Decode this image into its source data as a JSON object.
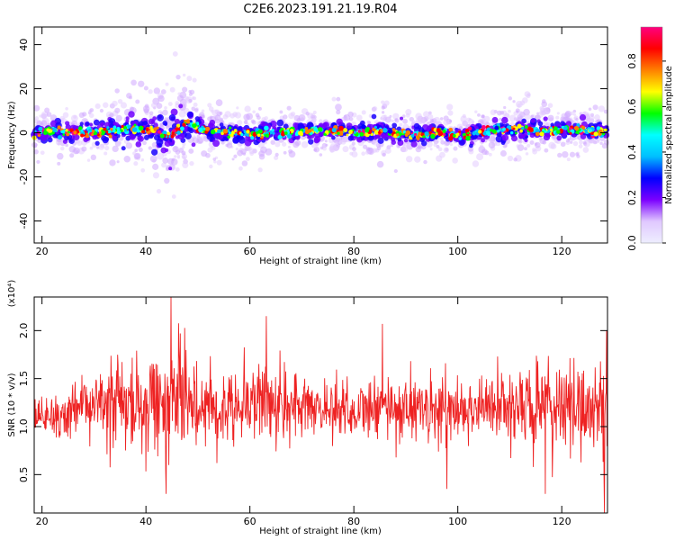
{
  "figure": {
    "title": "C2E6.2023.191.21.19.R04"
  },
  "chart_data": [
    {
      "type": "heatmap",
      "title": "C2E6.2023.191.21.19.R04",
      "xlabel": "Height of straight line (km)",
      "ylabel": "Frequency (Hz)",
      "xlim": [
        18.5,
        128.8
      ],
      "ylim": [
        -50,
        48
      ],
      "x_ticks": [
        20,
        40,
        60,
        80,
        100,
        120
      ],
      "y_ticks": [
        -40,
        -20,
        0,
        20,
        40
      ],
      "colorbar": {
        "label": "Normalized spectral amplitude",
        "range": [
          0.0,
          0.95
        ],
        "ticks": [
          0.0,
          0.2,
          0.4,
          0.6,
          0.8
        ],
        "colormap": [
          "#eeeeff",
          "#e0c8ff",
          "#7b00ff",
          "#0000ff",
          "#00bfff",
          "#00ffff",
          "#00ff00",
          "#ffff00",
          "#ff8000",
          "#ff0000",
          "#ff0080"
        ]
      },
      "ridge": {
        "x": [
          18.5,
          22,
          26,
          30,
          34,
          38,
          42,
          44,
          46,
          48,
          52,
          56,
          60,
          64,
          68,
          72,
          76,
          80,
          84,
          88,
          92,
          96,
          100,
          104,
          108,
          112,
          116,
          120,
          124,
          128.8
        ],
        "y": [
          0,
          1,
          0,
          0,
          1,
          2,
          1,
          -2,
          1,
          4,
          1,
          0,
          -1,
          0,
          0,
          1,
          1,
          0,
          1,
          0,
          -1,
          0,
          -1,
          0,
          1,
          2,
          1,
          1,
          1,
          1
        ],
        "width_hz": [
          4,
          4,
          4,
          5,
          6,
          6,
          8,
          10,
          10,
          8,
          5,
          4,
          4,
          4,
          4,
          4,
          4,
          4,
          4,
          4,
          4,
          4,
          4,
          4,
          4,
          5,
          5,
          4,
          4,
          4
        ]
      }
    },
    {
      "type": "line",
      "title": "",
      "xlabel": "Height of straight line (km)",
      "ylabel": "SNR (10 * v/v)",
      "y_multiplier": "(x10⁴)",
      "xlim": [
        18.5,
        128.8
      ],
      "ylim": [
        0.1,
        2.35
      ],
      "x_ticks": [
        20,
        40,
        60,
        80,
        100,
        120
      ],
      "y_ticks": [
        0.5,
        1.0,
        1.5,
        2.0
      ],
      "series": [
        {
          "color": "#ee2222",
          "baseline_x": [
            18.5,
            22,
            26,
            30,
            34,
            38,
            42,
            46,
            50,
            54,
            58,
            62,
            66,
            70,
            74,
            78,
            82,
            86,
            90,
            94,
            98,
            102,
            106,
            110,
            114,
            118,
            122,
            126,
            128.8
          ],
          "baseline_y": [
            1.05,
            1.1,
            1.15,
            1.2,
            1.25,
            1.2,
            1.25,
            1.3,
            1.25,
            1.2,
            1.25,
            1.3,
            1.2,
            1.2,
            1.2,
            1.2,
            1.15,
            1.2,
            1.2,
            1.2,
            1.15,
            1.2,
            1.2,
            1.2,
            1.2,
            1.2,
            1.2,
            1.2,
            1.2
          ],
          "amplitude_x": [
            18.5,
            22,
            26,
            30,
            34,
            38,
            42,
            46,
            50,
            54,
            58,
            62,
            66,
            70,
            74,
            78,
            82,
            86,
            90,
            94,
            98,
            102,
            106,
            110,
            114,
            118,
            122,
            126,
            128.8
          ],
          "amplitude_y": [
            0.2,
            0.25,
            0.3,
            0.4,
            0.45,
            0.45,
            0.55,
            0.6,
            0.45,
            0.4,
            0.45,
            0.5,
            0.4,
            0.35,
            0.3,
            0.35,
            0.3,
            0.35,
            0.35,
            0.35,
            0.4,
            0.35,
            0.35,
            0.4,
            0.45,
            0.45,
            0.45,
            0.5,
            0.6
          ],
          "peaks": [
            {
              "x": 44.8,
              "y": 2.35
            },
            {
              "x": 43.9,
              "y": 0.3
            },
            {
              "x": 63.2,
              "y": 2.15
            },
            {
              "x": 97.9,
              "y": 0.35
            },
            {
              "x": 116.8,
              "y": 0.3
            },
            {
              "x": 128.2,
              "y": 0.1
            },
            {
              "x": 128.6,
              "y": 2.0
            },
            {
              "x": 85.5,
              "y": 2.07
            }
          ]
        }
      ]
    }
  ]
}
